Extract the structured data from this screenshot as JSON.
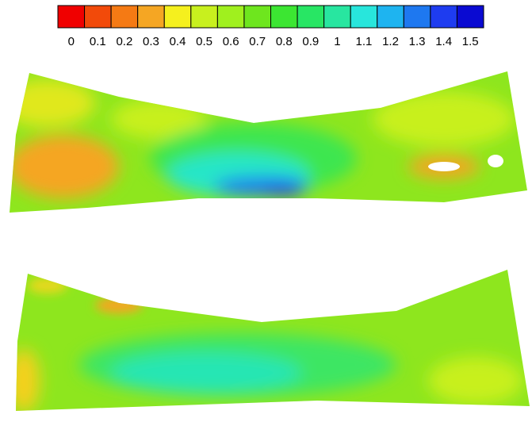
{
  "colorbar": {
    "labels": [
      "0",
      "0.1",
      "0.2",
      "0.3",
      "0.4",
      "0.5",
      "0.6",
      "0.7",
      "0.8",
      "0.9",
      "1",
      "1.1",
      "1.2",
      "1.3",
      "1.4",
      "1.5"
    ],
    "colors": [
      "#f00000",
      "#f24a0a",
      "#f57a14",
      "#f5a623",
      "#f5f01e",
      "#c8f01e",
      "#a0f01e",
      "#6ee61e",
      "#3ce632",
      "#28e664",
      "#28e6a0",
      "#28e6dc",
      "#1eb4f0",
      "#1e78f0",
      "#1e3cf0",
      "#0a0ad2"
    ]
  }
}
